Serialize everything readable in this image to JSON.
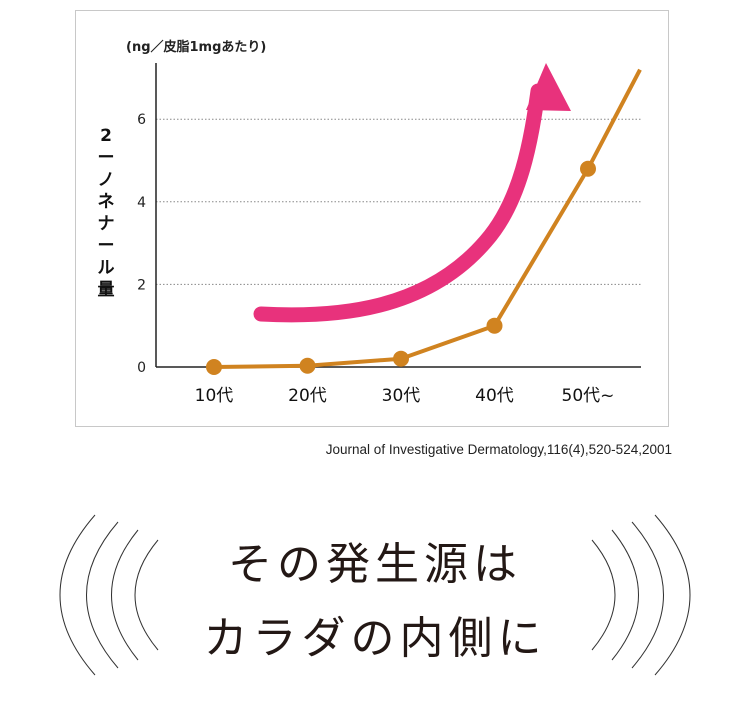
{
  "chart_data": {
    "type": "line",
    "title": "",
    "ylabel": "2ーノネナール量",
    "unit_label": "(ng／皮脂1mgあたり)",
    "xlabel": "",
    "categories": [
      "10代",
      "20代",
      "30代",
      "40代",
      "50代~"
    ],
    "series": [
      {
        "name": "2-ノネナール量",
        "values": [
          0,
          0.03,
          0.2,
          1.0,
          4.8
        ],
        "line_end_value": 7.2
      }
    ],
    "yticks": [
      0,
      2,
      4,
      6
    ],
    "ylim": [
      0,
      7.5
    ],
    "grid": "horizontal dotted",
    "annotation": "pink upward trend arrow",
    "colors": {
      "line": "#d08320",
      "arrow": "#e8327c",
      "grid": "#888888",
      "axis": "#222222"
    }
  },
  "source": "Journal of Investigative Dermatology,116(4),520-524,2001",
  "headline": {
    "line1": "その発生源は",
    "line2": "カラダの内側に"
  }
}
